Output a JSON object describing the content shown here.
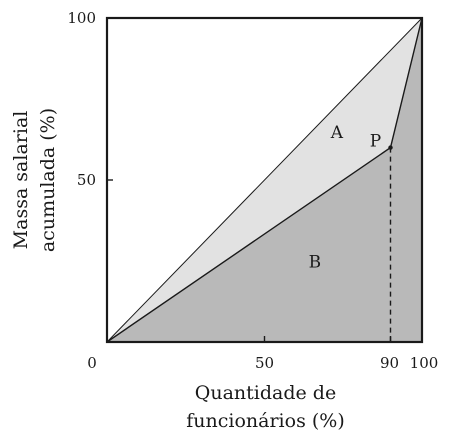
{
  "chart_data": {
    "type": "area",
    "xlabel_lines": [
      "Quantidade de",
      "funcionários (%)"
    ],
    "ylabel_lines": [
      "Massa salarial",
      "acumulada (%)"
    ],
    "xlim": [
      0,
      100
    ],
    "ylim": [
      0,
      100
    ],
    "x_ticks": [
      {
        "value": 0,
        "label": "0"
      },
      {
        "value": 50,
        "label": "50"
      },
      {
        "value": 90,
        "label": "90"
      },
      {
        "value": 100,
        "label": "100"
      }
    ],
    "y_ticks": [
      {
        "value": 50,
        "label": "50"
      },
      {
        "value": 100,
        "label": "100"
      }
    ],
    "series": [
      {
        "x": [
          0,
          100
        ],
        "y": [
          0,
          100
        ]
      },
      {
        "x": [
          0,
          90,
          100
        ],
        "y": [
          0,
          60,
          100
        ]
      }
    ],
    "points": [
      {
        "label": "P",
        "x": 90,
        "y": 60
      }
    ],
    "regions": [
      {
        "label": "A",
        "x": 73,
        "y": 63
      },
      {
        "label": "B",
        "x": 66,
        "y": 23
      }
    ],
    "colors": {
      "equality_fill": "#e2e2e2",
      "curve_fill": "#b9b9b9",
      "line": "#1a1a1a",
      "background": "#ffffff"
    }
  }
}
